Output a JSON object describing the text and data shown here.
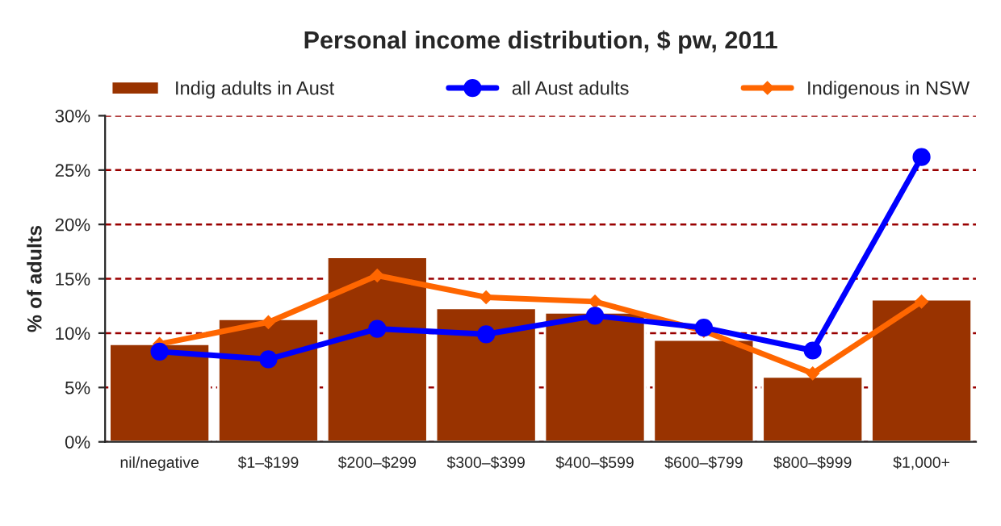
{
  "chart_data": {
    "type": "bar",
    "title": "Personal income distribution, $ pw, 2011",
    "ylabel": "% of adults",
    "categories": [
      "nil/negative",
      "$1–$199",
      "$200–$299",
      "$300–$399",
      "$400–$599",
      "$600–$799",
      "$800–$999",
      "$1,000+"
    ],
    "series": [
      {
        "name": "Indig adults in Aust",
        "color": "#993300",
        "values": [
          9.0,
          11.3,
          17.0,
          12.3,
          11.9,
          9.4,
          6.0,
          13.1
        ]
      },
      {
        "name": "all Aust adults",
        "type": "line",
        "color": "#0000ff",
        "marker": "circle",
        "values": [
          8.3,
          7.6,
          10.4,
          9.9,
          11.6,
          10.5,
          8.4,
          26.2
        ]
      },
      {
        "name": "Indigenous in NSW",
        "type": "line",
        "color": "#ff6600",
        "marker": "diamond",
        "values": [
          9.0,
          11.0,
          15.3,
          13.3,
          12.9,
          10.2,
          6.3,
          12.9
        ]
      }
    ],
    "ylim": [
      0,
      30
    ],
    "yticks": [
      {
        "value": 0,
        "label": "0%"
      },
      {
        "value": 5,
        "label": "5%"
      },
      {
        "value": 10,
        "label": "10%"
      },
      {
        "value": 15,
        "label": "15%"
      },
      {
        "value": 20,
        "label": "20%"
      },
      {
        "value": 25,
        "label": "25%"
      },
      {
        "value": 30,
        "label": "30%"
      }
    ],
    "grid": "y",
    "legend": "top"
  }
}
